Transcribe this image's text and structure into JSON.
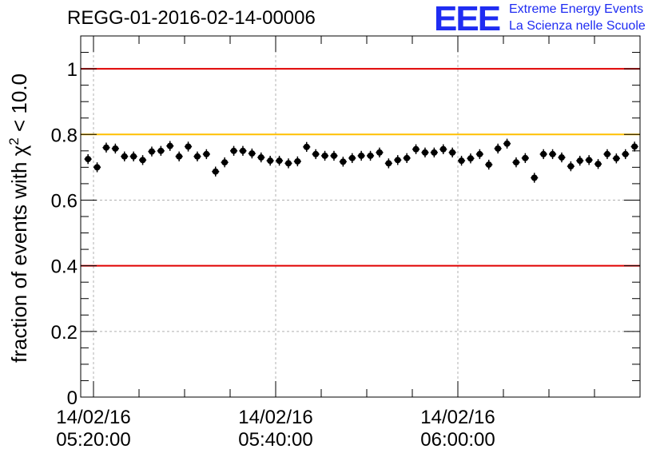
{
  "header": {
    "title": "REGG-01-2016-02-14-00006",
    "logo_text": "EEE",
    "logo_line1": "Extreme Energy Events",
    "logo_line2": "La Scienza nelle Scuole"
  },
  "colors": {
    "red_line": "#e00000",
    "yellow_line": "#ffc000",
    "logo_blue": "#1f2cf2",
    "grid": "#b0b0b0",
    "marker": "#000000"
  },
  "chart_data": {
    "type": "scatter",
    "title": "REGG-01-2016-02-14-00006",
    "ylabel_prefix": "fraction of events with χ",
    "ylabel_sup": "2",
    "ylabel_suffix": " < 10.0",
    "xlabel": "",
    "ylim": [
      0,
      1.1
    ],
    "xlim_minutes": [
      0,
      60
    ],
    "y_ticks": [
      "0",
      "0.2",
      "0.4",
      "0.6",
      "0.8",
      "1"
    ],
    "y_tick_values": [
      0,
      0.2,
      0.4,
      0.6,
      0.8,
      1.0
    ],
    "x_ticks": [
      {
        "minute": 0,
        "date": "14/02/16",
        "time": "05:20:00"
      },
      {
        "minute": 20,
        "date": "14/02/16",
        "time": "05:40:00"
      },
      {
        "minute": 40,
        "date": "14/02/16",
        "time": "06:00:00"
      }
    ],
    "grid": true,
    "reference_lines": [
      {
        "y": 1.0,
        "color": "red"
      },
      {
        "y": 0.8,
        "color": "yellow"
      },
      {
        "y": 0.4,
        "color": "red"
      }
    ],
    "yerr": 0.015,
    "xerr_minutes": 0.4,
    "series": [
      {
        "name": "fraction",
        "x": [
          -0.6,
          0.4,
          1.4,
          2.4,
          3.4,
          4.4,
          5.4,
          6.4,
          7.4,
          8.4,
          9.4,
          10.4,
          11.4,
          12.4,
          13.4,
          14.4,
          15.4,
          16.4,
          17.4,
          18.4,
          19.4,
          20.4,
          21.4,
          22.4,
          23.4,
          24.4,
          25.4,
          26.4,
          27.4,
          28.4,
          29.4,
          30.4,
          31.4,
          32.4,
          33.4,
          34.4,
          35.4,
          36.4,
          37.4,
          38.4,
          39.4,
          40.4,
          41.4,
          42.4,
          43.4,
          44.4,
          45.4,
          46.4,
          47.4,
          48.4,
          49.4,
          50.4,
          51.4,
          52.4,
          53.4,
          54.4,
          55.4,
          56.4,
          57.4,
          58.4
        ],
        "values": [
          0.725,
          0.7,
          0.76,
          0.757,
          0.733,
          0.733,
          0.722,
          0.748,
          0.75,
          0.765,
          0.733,
          0.763,
          0.733,
          0.74,
          0.687,
          0.715,
          0.75,
          0.75,
          0.742,
          0.73,
          0.72,
          0.72,
          0.712,
          0.718,
          0.762,
          0.74,
          0.735,
          0.735,
          0.717,
          0.728,
          0.735,
          0.735,
          0.745,
          0.712,
          0.722,
          0.728,
          0.755,
          0.745,
          0.745,
          0.755,
          0.745,
          0.72,
          0.727,
          0.74,
          0.708,
          0.757,
          0.772,
          0.715,
          0.728,
          0.668,
          0.74,
          0.74,
          0.73,
          0.703,
          0.72,
          0.722,
          0.71,
          0.74,
          0.727,
          0.74
        ]
      }
    ],
    "extra_points": [
      {
        "x": 59.4,
        "y": 0.763
      }
    ]
  }
}
